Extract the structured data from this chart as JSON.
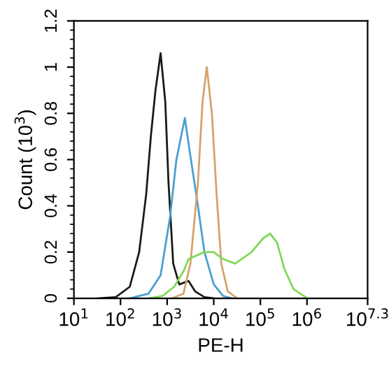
{
  "chart_data": {
    "type": "line",
    "xlabel": "PE-H",
    "ylabel": "Count (10$^{3}$)",
    "log": "x",
    "grid": false,
    "legend": false,
    "marker": "none",
    "line_style": "solid",
    "xlim": [
      10,
      19952623
    ],
    "xticks": [
      {
        "value": 10,
        "label": "10$^{1}$"
      },
      {
        "value": 100,
        "label": "10$^{2}$"
      },
      {
        "value": 1000,
        "label": "10$^{3}$"
      },
      {
        "value": 10000,
        "label": "10$^{4}$"
      },
      {
        "value": 100000,
        "label": "10$^{5}$"
      },
      {
        "value": 1000000,
        "label": "10$^{6}$"
      },
      {
        "value": 19952623,
        "label": "10$^{7.3}$"
      }
    ],
    "ylim": [
      0,
      1.2
    ],
    "yticks": [
      0,
      0.2,
      0.4,
      0.6,
      0.8,
      1,
      1.2
    ],
    "series": [
      {
        "color": "#1a1a1a",
        "x": [
          32,
          79,
          158,
          251,
          355,
          447,
          562,
          724,
          912,
          1070,
          1350,
          1820,
          2450,
          2880,
          3980,
          6310,
          10000
        ],
        "values": [
          0,
          0.005,
          0.05,
          0.2,
          0.45,
          0.7,
          0.9,
          1.06,
          0.85,
          0.5,
          0.15,
          0.06,
          0.07,
          0.075,
          0.03,
          0.005,
          0
        ]
      },
      {
        "color": "#4a9fd0",
        "x": [
          158,
          398,
          724,
          1150,
          1580,
          2400,
          3240,
          4570,
          6310,
          10000,
          15800,
          25100
        ],
        "values": [
          0,
          0.02,
          0.1,
          0.35,
          0.6,
          0.78,
          0.6,
          0.4,
          0.2,
          0.06,
          0.01,
          0
        ]
      },
      {
        "color": "#d4a36c",
        "x": [
          1260,
          2240,
          3160,
          4570,
          5750,
          7080,
          9120,
          11500,
          14500,
          20000,
          31600
        ],
        "values": [
          0,
          0.02,
          0.15,
          0.5,
          0.85,
          1.0,
          0.8,
          0.45,
          0.15,
          0.03,
          0
        ]
      },
      {
        "color": "#7ed957",
        "x": [
          398,
          794,
          1410,
          2290,
          2880,
          6310,
          10000,
          15800,
          28800,
          64600,
          115000,
          162000,
          229000,
          324000,
          513000,
          1020000
        ],
        "values": [
          0,
          0.01,
          0.05,
          0.12,
          0.17,
          0.2,
          0.2,
          0.17,
          0.15,
          0.2,
          0.26,
          0.28,
          0.24,
          0.13,
          0.04,
          0
        ]
      }
    ]
  }
}
